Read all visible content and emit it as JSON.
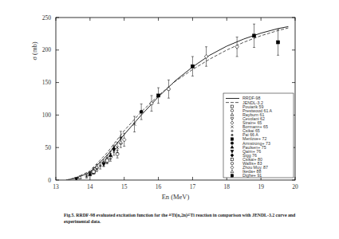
{
  "chart_data": {
    "type": "line",
    "x_label": "En (MeV)",
    "y_label": "σ (mb)",
    "caption": [
      "Fig.5.  RRDF-98 evaluated excitation function for the ⁴⁶Ti(n,2n)⁴⁵Ti reaction in comparison with JENDL-3.2 curve and",
      "experimental data."
    ],
    "xlim": [
      13,
      20
    ],
    "ylim": [
      0,
      250
    ],
    "xticks": [
      13,
      14,
      15,
      16,
      17,
      18,
      19,
      20
    ],
    "yticks": [
      0,
      50,
      100,
      150,
      200,
      250
    ],
    "grid": false,
    "legend": "lower right",
    "color": "#000000",
    "series": [
      {
        "name": "RRDF-98",
        "type": "line",
        "line_style": "solid",
        "color": "#222222",
        "x": [
          13.3,
          13.6,
          14,
          14.5,
          15,
          15.5,
          16,
          16.5,
          17,
          17.5,
          18,
          18.5,
          19,
          19.5,
          19.8
        ],
        "values": [
          0,
          3,
          12,
          38,
          70,
          100,
          128,
          153,
          174,
          192,
          206,
          217,
          226,
          233,
          236
        ]
      },
      {
        "name": "JENDL-3.2",
        "type": "line",
        "line_style": "dashed",
        "color": "#555555",
        "x": [
          13.3,
          13.6,
          14,
          14.5,
          15,
          15.5,
          16,
          16.5,
          17,
          17.5,
          18,
          18.5,
          19,
          19.5,
          19.8
        ],
        "values": [
          0,
          4,
          14,
          42,
          76,
          105,
          130,
          152,
          170,
          186,
          200,
          212,
          222,
          230,
          234
        ]
      },
      {
        "name": "Pouiarik 59",
        "type": "scatter",
        "marker": "square-open",
        "color": "#000000",
        "x": [
          14.1
        ],
        "values": [
          12
        ],
        "errors": [
          3
        ]
      },
      {
        "name": "Prestwood 61 A",
        "type": "scatter",
        "marker": "circle-open",
        "color": "#000000",
        "x": [
          14.4,
          14.8
        ],
        "values": [
          26,
          40
        ],
        "errors": [
          5,
          6
        ]
      },
      {
        "name": "Rayburn 61",
        "type": "scatter",
        "marker": "triangle-open",
        "color": "#000000",
        "x": [
          14.1,
          14.5
        ],
        "values": [
          15,
          32
        ],
        "errors": [
          4,
          6
        ]
      },
      {
        "name": "Cevolani 62",
        "type": "scatter",
        "marker": "triangle-down-open",
        "color": "#000000",
        "x": [
          14.0
        ],
        "values": [
          10
        ],
        "errors": [
          3
        ]
      },
      {
        "name": "Strain+ 65",
        "type": "scatter",
        "marker": "diamond-open",
        "color": "#000000",
        "x": [
          14.6,
          15.0
        ],
        "values": [
          35,
          62
        ],
        "errors": [
          6,
          10
        ]
      },
      {
        "name": "Bormann+ 65",
        "type": "scatter",
        "marker": "cross",
        "color": "#000000",
        "x": [
          14.2,
          14.8,
          15.3
        ],
        "values": [
          17,
          50,
          86
        ],
        "errors": [
          4,
          8,
          12
        ]
      },
      {
        "name": "Csikai 65",
        "type": "scatter",
        "marker": "plus",
        "color": "#000000",
        "x": [
          14.7
        ],
        "values": [
          45
        ],
        "errors": [
          7
        ]
      },
      {
        "name": "Pai 66 A",
        "type": "scatter",
        "marker": "star",
        "color": "#000000",
        "x": [
          13.9,
          14.3,
          14.9
        ],
        "values": [
          6,
          22,
          65
        ],
        "errors": [
          3,
          5,
          10
        ]
      },
      {
        "name": "Menlove+ 72",
        "type": "scatter",
        "marker": "square-filled",
        "color": "#000000",
        "x": [
          16.0,
          17.0
        ],
        "values": [
          130,
          175
        ],
        "errors": [
          12,
          15
        ]
      },
      {
        "name": "Armstrong+ 73",
        "type": "scatter",
        "marker": "circle-filled",
        "color": "#000000",
        "x": [
          15.5
        ],
        "values": [
          105
        ],
        "errors": [
          12
        ]
      },
      {
        "name": "Paulsen+ 75",
        "type": "scatter",
        "marker": "triangle-filled",
        "color": "#000000",
        "x": [
          14.0,
          14.6
        ],
        "values": [
          9,
          38
        ],
        "errors": [
          3,
          6
        ]
      },
      {
        "name": "Qaim+ 76",
        "type": "scatter",
        "marker": "triangle-down-filled",
        "color": "#000000",
        "x": [
          13.6,
          14.4
        ],
        "values": [
          2,
          25
        ],
        "errors": [
          1,
          4
        ]
      },
      {
        "name": "Sigg 76",
        "type": "scatter",
        "marker": "diamond-filled",
        "color": "#000000",
        "x": [
          14.7
        ],
        "values": [
          48
        ],
        "errors": [
          6
        ]
      },
      {
        "name": "Csikai+ 80",
        "type": "scatter",
        "marker": "square-open",
        "color": "#000000",
        "x": [
          14.1,
          14.5
        ],
        "values": [
          13,
          30
        ],
        "errors": [
          3,
          5
        ]
      },
      {
        "name": "Wallis+ 83",
        "type": "scatter",
        "marker": "circle-open",
        "color": "#000000",
        "x": [
          15.8,
          16.3
        ],
        "values": [
          118,
          140
        ],
        "errors": [
          12,
          14
        ]
      },
      {
        "name": "Zhou Muy. 87",
        "type": "scatter",
        "marker": "diamond-open",
        "color": "#000000",
        "x": [
          17.4,
          18.3
        ],
        "values": [
          190,
          205
        ],
        "errors": [
          15,
          15
        ]
      },
      {
        "name": "Ikeda+ 88",
        "type": "scatter",
        "marker": "triangle-open",
        "color": "#000000",
        "x": [
          13.7,
          14.2,
          14.9
        ],
        "values": [
          4,
          20,
          58
        ],
        "errors": [
          2,
          4,
          8
        ]
      },
      {
        "name": "Dighe+ 91",
        "type": "scatter",
        "marker": "square-filled",
        "color": "#000000",
        "x": [
          18.8,
          19.5
        ],
        "values": [
          222,
          212
        ],
        "errors": [
          18,
          20
        ]
      }
    ]
  }
}
